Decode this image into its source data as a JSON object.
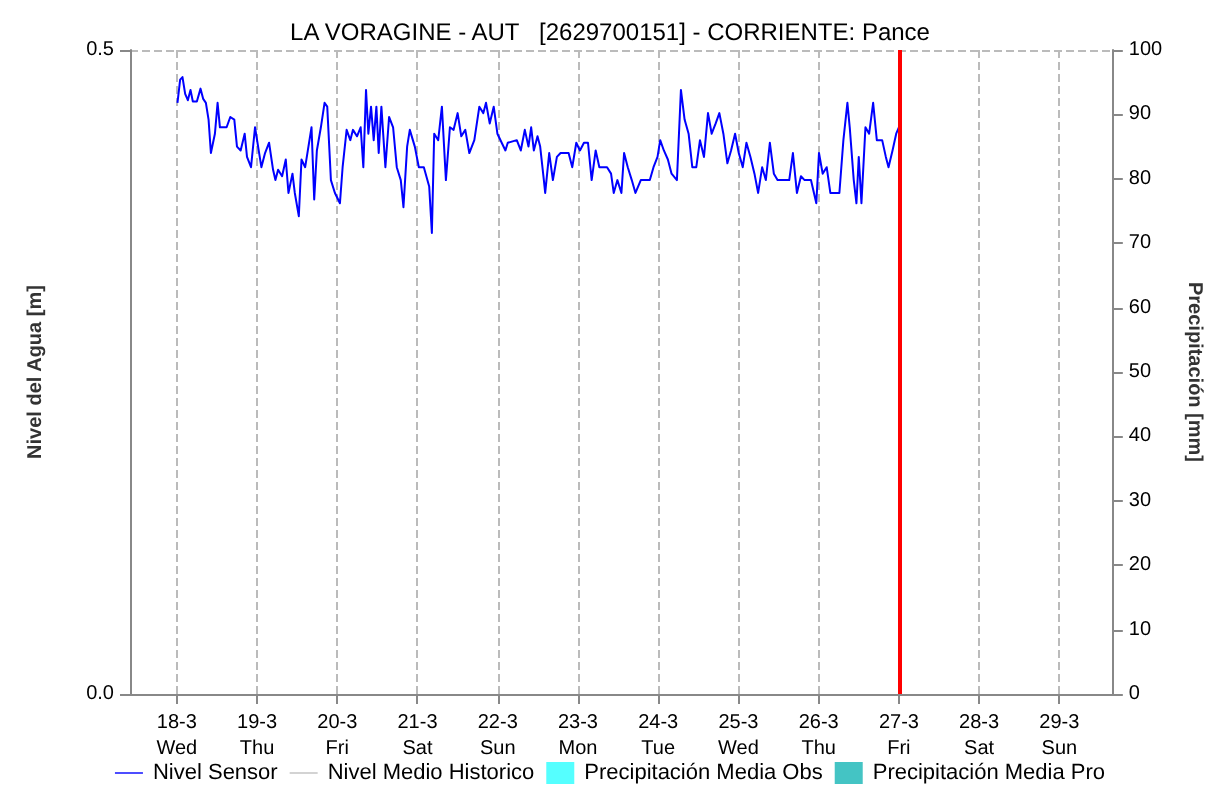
{
  "chart_data": {
    "type": "line",
    "title": "LA VORAGINE - AUT   [2629700151] - CORRIENTE: Pance",
    "ylabel": "Nivel del Agua [m]",
    "y2label": "Precipitación [mm]",
    "xlim": [
      "--03-17T10:00",
      "--03-29T16:00"
    ],
    "xticks": [
      {
        "value": "--03-18",
        "label": "18-3\nWed"
      },
      {
        "value": "--03-19",
        "label": "19-3\nThu"
      },
      {
        "value": "--03-20",
        "label": "20-3\nFri"
      },
      {
        "value": "--03-21",
        "label": "21-3\nSat"
      },
      {
        "value": "--03-22",
        "label": "22-3\nSun"
      },
      {
        "value": "--03-23",
        "label": "23-3\nMon"
      },
      {
        "value": "--03-24",
        "label": "24-3\nTue"
      },
      {
        "value": "--03-25",
        "label": "25-3\nWed"
      },
      {
        "value": "--03-26",
        "label": "26-3\nThu"
      },
      {
        "value": "--03-27",
        "label": "27-3\nFri"
      },
      {
        "value": "--03-28",
        "label": "28-3\nSat"
      },
      {
        "value": "--03-29",
        "label": "29-3\nSun"
      }
    ],
    "ylim": [
      0,
      0.5
    ],
    "yticks": [
      {
        "value": 0,
        "label": "0.0"
      },
      {
        "value": 0.5,
        "label": "0.5"
      }
    ],
    "y2lim": [
      0,
      100
    ],
    "y2ticks": [
      0,
      10,
      20,
      30,
      40,
      50,
      60,
      70,
      80,
      90,
      100
    ],
    "grid": true,
    "legend": "bottom",
    "marker": "none",
    "ref_lines": [
      {
        "axis": "x",
        "value": "--03-27",
        "color": "#ff0000"
      }
    ],
    "series": [
      {
        "name": "Nivel Sensor",
        "color": "#0000ff",
        "line_style": "solid",
        "x": [
          "--03-18T00:12",
          "--03-18T01:00",
          "--03-18T01:42",
          "--03-18T02:30",
          "--03-18T03:18",
          "--03-18T04:06",
          "--03-18T04:48",
          "--03-18T06:00",
          "--03-18T07:06",
          "--03-18T07:54",
          "--03-18T08:42",
          "--03-18T09:30",
          "--03-18T10:12",
          "--03-18T11:24",
          "--03-18T12:12",
          "--03-18T12:54",
          "--03-18T14:54",
          "--03-18T16:00",
          "--03-18T17:12",
          "--03-18T18:00",
          "--03-18T19:06",
          "--03-18T20:18",
          "--03-18T21:00",
          "--03-18T22:12",
          "--03-18T23:24",
          "--03-19T00:30",
          "--03-19T01:18",
          "--03-19T02:24",
          "--03-19T03:36",
          "--03-19T04:48",
          "--03-19T05:30",
          "--03-19T06:18",
          "--03-19T07:30",
          "--03-19T08:36",
          "--03-19T09:24",
          "--03-19T10:36",
          "--03-19T11:18",
          "--03-19T12:30",
          "--03-19T13:18",
          "--03-19T14:24",
          "--03-19T15:12",
          "--03-19T16:18",
          "--03-19T17:06",
          "--03-19T17:54",
          "--03-19T19:06",
          "--03-19T20:12",
          "--03-19T21:00",
          "--03-19T22:06",
          "--03-19T23:18",
          "--03-20T00:48",
          "--03-20T01:36",
          "--03-20T02:48",
          "--03-20T03:54",
          "--03-20T04:42",
          "--03-20T05:54",
          "--03-20T07:00",
          "--03-20T07:48",
          "--03-20T08:36",
          "--03-20T09:18",
          "--03-20T10:06",
          "--03-20T10:54",
          "--03-20T11:42",
          "--03-20T12:24",
          "--03-20T13:12",
          "--03-20T14:24",
          "--03-20T15:30",
          "--03-20T16:42",
          "--03-20T17:48",
          "--03-20T19:00",
          "--03-20T19:48",
          "--03-20T20:54",
          "--03-20T21:42",
          "--03-20T23:12",
          "--03-21T00:24",
          "--03-21T01:54",
          "--03-21T03:30",
          "--03-21T04:18",
          "--03-21T05:00",
          "--03-21T06:12",
          "--03-21T07:18",
          "--03-21T08:30",
          "--03-21T09:42",
          "--03-21T10:48",
          "--03-21T12:00",
          "--03-21T13:06",
          "--03-21T14:18",
          "--03-21T15:30",
          "--03-21T17:00",
          "--03-21T18:30",
          "--03-21T19:42",
          "--03-21T20:30",
          "--03-21T21:36",
          "--03-21T22:48",
          "--03-21T23:54",
          "--03-22T02:18",
          "--03-22T03:00",
          "--03-22T05:42",
          "--03-22T06:54",
          "--03-22T08:06",
          "--03-22T09:12",
          "--03-22T10:00",
          "--03-22T10:48",
          "--03-22T11:54",
          "--03-22T12:42",
          "--03-22T13:48",
          "--03-22T14:12",
          "--03-22T15:24",
          "--03-22T16:30",
          "--03-22T17:42",
          "--03-22T18:48",
          "--03-22T21:12",
          "--03-22T22:18",
          "--03-22T23:30",
          "--03-23T00:36",
          "--03-23T01:48",
          "--03-23T03:00",
          "--03-23T04:06",
          "--03-23T05:18",
          "--03-23T06:24",
          "--03-23T08:42",
          "--03-23T09:54",
          "--03-23T10:42",
          "--03-23T11:48",
          "--03-23T13:00",
          "--03-23T13:48",
          "--03-23T14:54",
          "--03-23T16:06",
          "--03-23T17:12",
          "--03-23T18:48",
          "--03-23T21:30",
          "--03-23T22:36",
          "--03-23T23:48",
          "--03-24T00:36",
          "--03-24T01:42",
          "--03-24T02:54",
          "--03-24T04:00",
          "--03-24T05:36",
          "--03-24T06:48",
          "--03-24T07:54",
          "--03-24T09:06",
          "--03-24T10:12",
          "--03-24T11:24",
          "--03-24T12:30",
          "--03-24T13:42",
          "--03-24T14:54",
          "--03-24T16:00",
          "--03-24T17:12",
          "--03-24T18:18",
          "--03-24T19:30",
          "--03-24T20:42",
          "--03-24T21:48",
          "--03-24T23:00",
          "--03-25T00:06",
          "--03-25T01:18",
          "--03-25T02:24",
          "--03-25T03:36",
          "--03-25T04:48",
          "--03-25T05:54",
          "--03-25T07:06",
          "--03-25T08:12",
          "--03-25T09:24",
          "--03-25T10:36",
          "--03-25T11:42",
          "--03-25T15:12",
          "--03-25T16:18",
          "--03-25T17:30",
          "--03-25T18:42",
          "--03-25T19:48",
          "--03-25T21:42",
          "--03-25T23:18",
          "--03-26T00:06",
          "--03-26T01:12",
          "--03-26T02:24",
          "--03-26T03:30",
          "--03-26T06:12",
          "--03-26T07:24",
          "--03-26T08:36",
          "--03-26T09:18",
          "--03-26T10:30",
          "--03-26T11:18",
          "--03-26T12:00",
          "--03-26T12:48",
          "--03-26T14:00",
          "--03-26T15:06",
          "--03-26T16:18",
          "--03-26T17:24",
          "--03-26T19:00",
          "--03-26T20:06",
          "--03-26T20:54",
          "--03-26T22:06",
          "--03-26T23:12",
          "--03-27T00:00"
        ],
        "values": [
          0.459,
          0.477,
          0.479,
          0.466,
          0.461,
          0.469,
          0.46,
          0.46,
          0.47,
          0.462,
          0.459,
          0.446,
          0.42,
          0.435,
          0.459,
          0.44,
          0.44,
          0.448,
          0.446,
          0.425,
          0.422,
          0.435,
          0.417,
          0.409,
          0.44,
          0.422,
          0.409,
          0.42,
          0.428,
          0.407,
          0.399,
          0.407,
          0.402,
          0.415,
          0.389,
          0.404,
          0.389,
          0.371,
          0.415,
          0.409,
          0.422,
          0.44,
          0.384,
          0.422,
          0.44,
          0.459,
          0.456,
          0.399,
          0.389,
          0.381,
          0.409,
          0.438,
          0.43,
          0.438,
          0.433,
          0.44,
          0.409,
          0.469,
          0.435,
          0.456,
          0.43,
          0.456,
          0.42,
          0.456,
          0.409,
          0.448,
          0.44,
          0.409,
          0.399,
          0.378,
          0.425,
          0.438,
          0.425,
          0.409,
          0.409,
          0.394,
          0.358,
          0.435,
          0.43,
          0.456,
          0.399,
          0.44,
          0.438,
          0.451,
          0.433,
          0.438,
          0.42,
          0.43,
          0.456,
          0.451,
          0.459,
          0.443,
          0.456,
          0.435,
          0.422,
          0.428,
          0.43,
          0.422,
          0.438,
          0.425,
          0.44,
          0.422,
          0.433,
          0.425,
          0.399,
          0.389,
          0.42,
          0.399,
          0.417,
          0.42,
          0.42,
          0.409,
          0.428,
          0.422,
          0.428,
          0.428,
          0.399,
          0.422,
          0.409,
          0.409,
          0.404,
          0.389,
          0.399,
          0.389,
          0.42,
          0.409,
          0.399,
          0.389,
          0.399,
          0.399,
          0.409,
          0.417,
          0.43,
          0.422,
          0.415,
          0.404,
          0.399,
          0.469,
          0.446,
          0.435,
          0.409,
          0.409,
          0.43,
          0.417,
          0.451,
          0.435,
          0.443,
          0.451,
          0.435,
          0.412,
          0.422,
          0.435,
          0.42,
          0.409,
          0.428,
          0.417,
          0.404,
          0.389,
          0.409,
          0.399,
          0.428,
          0.404,
          0.399,
          0.399,
          0.42,
          0.389,
          0.402,
          0.399,
          0.399,
          0.381,
          0.42,
          0.404,
          0.409,
          0.389,
          0.389,
          0.43,
          0.459,
          0.44,
          0.399,
          0.381,
          0.417,
          0.381,
          0.44,
          0.435,
          0.459,
          0.43,
          0.43,
          0.417,
          0.409,
          0.422,
          0.435,
          0.44
        ]
      },
      {
        "name": "Nivel Medio Historico",
        "color": "#c0c0c0",
        "line_style": "dashed"
      },
      {
        "name": "Precipitación Media Obs",
        "type": "bar",
        "color": "#55ffff"
      },
      {
        "name": "Precipitación Media Pro",
        "type": "bar",
        "color": "#44c4c4"
      }
    ]
  }
}
